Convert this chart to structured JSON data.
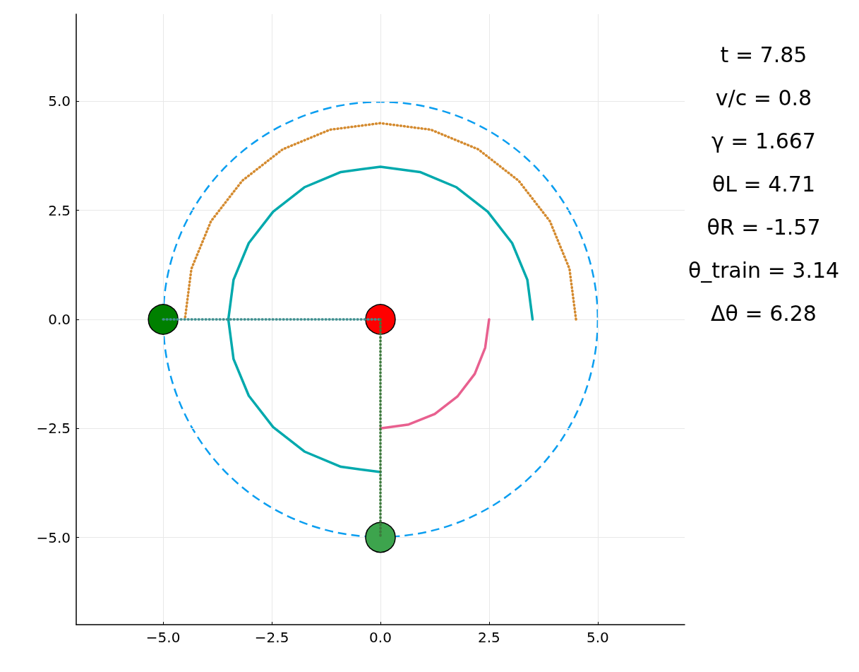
{
  "chart_data": {
    "type": "line",
    "xlim": [
      -7,
      7
    ],
    "ylim": [
      -7,
      7
    ],
    "xticks": [
      {
        "value": -5,
        "label": "−5.0"
      },
      {
        "value": -2.5,
        "label": "−2.5"
      },
      {
        "value": 0,
        "label": "0.0"
      },
      {
        "value": 2.5,
        "label": "2.5"
      },
      {
        "value": 5,
        "label": "5.0"
      }
    ],
    "yticks": [
      {
        "value": -5,
        "label": "−5.0"
      },
      {
        "value": -2.5,
        "label": "−2.5"
      },
      {
        "value": 0,
        "label": "0.0"
      },
      {
        "value": 2.5,
        "label": "2.5"
      },
      {
        "value": 5,
        "label": "5.0"
      }
    ],
    "grid": true,
    "annotations": [
      "t = 7.85",
      "v/c = 0.8",
      "γ = 1.667",
      "θL = 4.71",
      "θR = -1.57",
      "θ_train = 3.14",
      "Δθ = 6.28"
    ],
    "series": [
      {
        "type": "line",
        "color": "#d48a2e",
        "line_style": "dotted",
        "marker": "none",
        "x": [
          4.5,
          4.35,
          3.9,
          3.18,
          2.25,
          1.16,
          0,
          -1.16,
          -2.25,
          -3.18,
          -3.9,
          -4.35,
          -4.5
        ],
        "values": [
          0,
          1.16,
          2.25,
          3.18,
          3.9,
          4.35,
          4.5,
          4.35,
          3.9,
          3.18,
          2.25,
          1.16,
          0
        ]
      },
      {
        "type": "line",
        "color": "#00a9ad",
        "line_style": "solid",
        "marker": "none",
        "x": [
          3.5,
          3.38,
          3.03,
          2.47,
          1.75,
          0.91,
          0,
          -0.91,
          -1.75,
          -2.47,
          -3.03,
          -3.38,
          -3.5,
          -3.38,
          -3.03,
          -2.47,
          -1.75,
          -0.91,
          0
        ],
        "values": [
          0,
          0.91,
          1.75,
          2.47,
          3.03,
          3.38,
          3.5,
          3.38,
          3.03,
          2.47,
          1.75,
          0.91,
          0,
          -0.91,
          -1.75,
          -2.47,
          -3.03,
          -3.38,
          -3.5
        ]
      },
      {
        "type": "line",
        "color": "#e8608f",
        "line_style": "solid",
        "marker": "none",
        "x": [
          2.5,
          2.41,
          2.17,
          1.77,
          1.25,
          0.65,
          0
        ],
        "values": [
          0,
          -0.65,
          -1.25,
          -1.77,
          -2.17,
          -2.41,
          -2.5
        ]
      },
      {
        "type": "line",
        "color": "#3f8f8f",
        "line_style": "dotted",
        "x": [
          -5,
          0
        ],
        "values": [
          0,
          0
        ]
      },
      {
        "type": "line",
        "color": "#3d7a3d",
        "line_style": "dotted",
        "x": [
          0,
          0
        ],
        "values": [
          0,
          -5
        ]
      },
      {
        "type": "scatter",
        "color": "#008000",
        "marker": "circle",
        "x": [
          -5
        ],
        "values": [
          0
        ]
      },
      {
        "type": "scatter",
        "color": "#ff0000",
        "marker": "circle",
        "x": [
          0
        ],
        "values": [
          0
        ]
      },
      {
        "type": "scatter",
        "color": "#3da44d",
        "marker": "circle",
        "x": [
          0
        ],
        "values": [
          -5
        ]
      }
    ]
  }
}
